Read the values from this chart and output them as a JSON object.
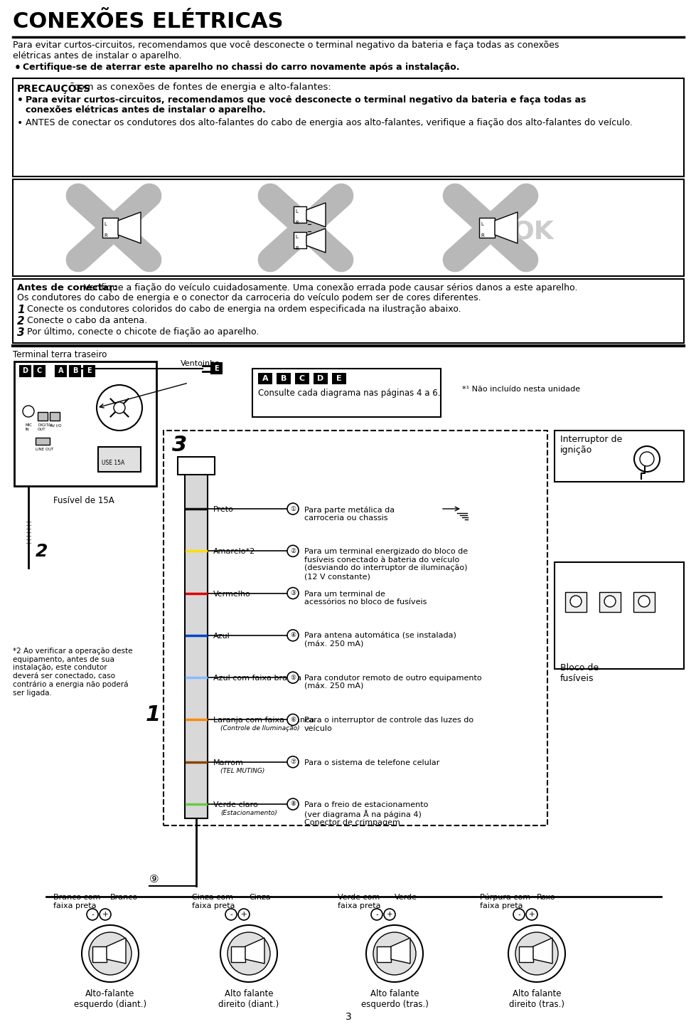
{
  "title": "CONEXÕES ELÉTRICAS",
  "bg_color": "#ffffff",
  "page_number": "3",
  "top_para_line1": "Para evitar curtos-circuitos, recomendamos que você desconecte o terminal negativo da bateria e faça todas as conexões",
  "top_para_line2": "elétricas antes de instalar o aparelho.",
  "bullet1": "Certifique-se de aterrar este aparelho no chassi do carro novamente após a instalação.",
  "precaucoes_title": "PRECAUÇÕES",
  "precaucoes_rest": " com as conexões de fontes de energia e alto-falantes:",
  "precaucoes_b1_line1": "Para evitar curtos-circuitos, recomendamos que você desconecte o terminal negativo da bateria e faça todas as",
  "precaucoes_b1_line2": "conexões elétricas antes de instalar o aparelho.",
  "precaucoes_b2": "ANTES de conectar os condutores dos alto-falantes do cabo de energia aos alto-falantes, verifique a fiação dos alto-falantes do veículo.",
  "antes_title": "Antes de conectar:",
  "antes_text_line1": " Verifique a fiação do veículo cuidadosamente. Uma conexão errada pode causar sérios danos a este aparelho.",
  "antes_text_line2": "Os condutores do cabo de energia e o conector da carroceria do veículo podem ser de cores diferentes.",
  "step1": "Conecte os condutores coloridos do cabo de energia na ordem especificada na ilustração abaixo.",
  "step2": "Conecte o cabo da antena.",
  "step3": "Por último, conecte o chicote de fiação ao aparelho.",
  "terminal_label": "Terminal terra traseiro",
  "ventoinha_label": "Ventoinha",
  "consulte_label": "Consulte cada diagrama nas páginas 4 a 6.",
  "nao_incluido": "*¹ Não incluído nesta unidade",
  "fusivel_label": "Fusível de 15A",
  "interruptor_label": "Interruptor de\nignição",
  "bloco_label": "Bloco de\nfusíveis",
  "wires": [
    {
      "name": "Preto",
      "color": "#111111",
      "num": "①",
      "desc": "Para parte metálica da\ncarroceria ou chassis",
      "sub": ""
    },
    {
      "name": "Amarelo*2",
      "color": "#ffdd00",
      "num": "②",
      "desc": "Para um terminal energizado do bloco de\nfusíveis conectado à bateria do veículo\n(desviando do interruptor de iluminação)\n(12 V constante)",
      "sub": ""
    },
    {
      "name": "Vermelho",
      "color": "#dd0000",
      "num": "③",
      "desc": "Para um terminal de\nacessórios no bloco de fusíveis",
      "sub": ""
    },
    {
      "name": "Azul",
      "color": "#0044cc",
      "num": "④",
      "desc": "Para antena automática (se instalada)\n(máx. 250 mA)",
      "sub": ""
    },
    {
      "name": "Azul com faixa branca",
      "color": "#88bbff",
      "num": "⑤",
      "desc": "Para condutor remoto de outro equipamento\n(máx. 250 mA)",
      "sub": ""
    },
    {
      "name": "Laranja com faixa branca",
      "color": "#ff8800",
      "num": "⑥",
      "desc": "Para o interruptor de controle das luzes do\nveículo",
      "sub": "(Controle de Iluminação)"
    },
    {
      "name": "Marrom",
      "color": "#884400",
      "num": "⑦",
      "desc": "Para o sistema de telefone celular",
      "sub": "(TEL MUTING)"
    },
    {
      "name": "Verde claro",
      "color": "#66cc44",
      "num": "⑧",
      "desc": "Para o freio de estacionamento\n(ver diagrama Å na página 4)\nConector de crimpagem",
      "sub": "(Estacionamento)"
    }
  ],
  "speakers": [
    {
      "wire1": "Branco com",
      "wire1b": "faixa preta",
      "plain": "Branco",
      "label": "Alto-falante\nesquerdo (diant.)"
    },
    {
      "wire1": "Cinza com",
      "wire1b": "faixa preta",
      "plain": "Cinza",
      "label": "Alto falante\ndireito (diant.)"
    },
    {
      "wire1": "Verde com",
      "wire1b": "faixa preta",
      "plain": "Verde",
      "label": "Alto falante\nesquerdo (tras.)"
    },
    {
      "wire1": "Púrpura com",
      "wire1b": "faixa preta",
      "plain": "Roxo",
      "label": "Alto falante\ndireito (tras.)"
    }
  ],
  "ao_verificar": "*2 Ao verificar a operação deste\nequipamento, antes de sua\ninstalação, este condutor\ndeverá ser conectado, caso\ncontrário a energia não poderá\nser ligada.",
  "num9_label": "⑨"
}
